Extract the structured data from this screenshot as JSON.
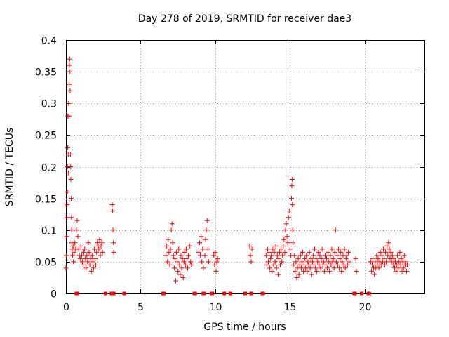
{
  "chart_data": {
    "type": "scatter",
    "title": "Day 278 of 2019, SRMTID for receiver dae3",
    "xlabel": "GPS time / hours",
    "ylabel": "SRMTID / TECUs",
    "xlim": [
      0,
      24
    ],
    "ylim": [
      0,
      0.4
    ],
    "grid": true,
    "marker": "plus",
    "color": "#ff0000",
    "xticks": [
      0,
      5,
      10,
      15,
      20
    ],
    "xtick_labels": [
      "0",
      "5",
      "10",
      "15",
      "20"
    ],
    "yticks": [
      0,
      0.05,
      0.1,
      0.15,
      0.2,
      0.25,
      0.3,
      0.35,
      0.4
    ],
    "ytick_labels": [
      "0",
      "0.05",
      "0.1",
      "0.15",
      "0.2",
      "0.25",
      "0.3",
      "0.35",
      "0.4"
    ],
    "series": [
      {
        "name": "SRMTID",
        "points": [
          [
            0.0,
            0.04
          ],
          [
            0.02,
            0.06
          ],
          [
            0.05,
            0.09
          ],
          [
            0.07,
            0.12
          ],
          [
            0.08,
            0.14
          ],
          [
            0.1,
            0.16
          ],
          [
            0.1,
            0.2
          ],
          [
            0.12,
            0.23
          ],
          [
            0.13,
            0.28
          ],
          [
            0.15,
            0.22
          ],
          [
            0.17,
            0.19
          ],
          [
            0.18,
            0.3
          ],
          [
            0.2,
            0.28
          ],
          [
            0.22,
            0.33
          ],
          [
            0.23,
            0.36
          ],
          [
            0.25,
            0.37
          ],
          [
            0.27,
            0.35
          ],
          [
            0.28,
            0.32
          ],
          [
            0.3,
            0.22
          ],
          [
            0.32,
            0.2
          ],
          [
            0.33,
            0.18
          ],
          [
            0.35,
            0.15
          ],
          [
            0.37,
            0.12
          ],
          [
            0.38,
            0.1
          ],
          [
            0.4,
            0.08
          ],
          [
            0.42,
            0.07
          ],
          [
            0.45,
            0.06
          ],
          [
            0.48,
            0.075
          ],
          [
            0.5,
            0.05
          ],
          [
            0.55,
            0.065
          ],
          [
            0.6,
            0.08
          ],
          [
            0.65,
            0.07
          ],
          [
            0.7,
            0.1
          ],
          [
            0.75,
            0.115
          ],
          [
            0.8,
            0.09
          ],
          [
            0.85,
            0.07
          ],
          [
            0.9,
            0.06
          ],
          [
            0.95,
            0.055
          ],
          [
            1.0,
            0.075
          ],
          [
            1.05,
            0.06
          ],
          [
            1.1,
            0.05
          ],
          [
            1.15,
            0.045
          ],
          [
            1.2,
            0.065
          ],
          [
            1.25,
            0.07
          ],
          [
            1.3,
            0.055
          ],
          [
            1.35,
            0.04
          ],
          [
            1.4,
            0.06
          ],
          [
            1.45,
            0.05
          ],
          [
            1.5,
            0.08
          ],
          [
            1.55,
            0.065
          ],
          [
            1.6,
            0.045
          ],
          [
            1.65,
            0.055
          ],
          [
            1.7,
            0.035
          ],
          [
            1.75,
            0.06
          ],
          [
            1.8,
            0.05
          ],
          [
            1.85,
            0.04
          ],
          [
            1.9,
            0.07
          ],
          [
            1.95,
            0.055
          ],
          [
            2.0,
            0.045
          ],
          [
            2.05,
            0.065
          ],
          [
            2.1,
            0.08
          ],
          [
            2.15,
            0.075
          ],
          [
            2.2,
            0.07
          ],
          [
            2.25,
            0.085
          ],
          [
            2.3,
            0.06
          ],
          [
            2.35,
            0.075
          ],
          [
            2.4,
            0.08
          ],
          [
            2.45,
            0.065
          ],
          [
            3.1,
            0.14
          ],
          [
            3.12,
            0.13
          ],
          [
            3.15,
            0.1
          ],
          [
            3.18,
            0.08
          ],
          [
            3.2,
            0.065
          ],
          [
            6.7,
            0.06
          ],
          [
            6.75,
            0.075
          ],
          [
            6.8,
            0.05
          ],
          [
            6.85,
            0.085
          ],
          [
            6.9,
            0.065
          ],
          [
            6.95,
            0.045
          ],
          [
            7.0,
            0.07
          ],
          [
            7.05,
            0.1
          ],
          [
            7.1,
            0.11
          ],
          [
            7.15,
            0.08
          ],
          [
            7.2,
            0.06
          ],
          [
            7.25,
            0.04
          ],
          [
            7.3,
            0.055
          ],
          [
            7.35,
            0.02
          ],
          [
            7.4,
            0.065
          ],
          [
            7.45,
            0.05
          ],
          [
            7.5,
            0.035
          ],
          [
            7.55,
            0.07
          ],
          [
            7.6,
            0.045
          ],
          [
            7.65,
            0.03
          ],
          [
            7.7,
            0.06
          ],
          [
            7.75,
            0.04
          ],
          [
            7.8,
            0.055
          ],
          [
            7.85,
            0.025
          ],
          [
            7.9,
            0.05
          ],
          [
            7.95,
            0.065
          ],
          [
            8.0,
            0.045
          ],
          [
            8.05,
            0.07
          ],
          [
            8.1,
            0.055
          ],
          [
            8.15,
            0.04
          ],
          [
            8.2,
            0.06
          ],
          [
            8.3,
            0.075
          ],
          [
            8.35,
            0.05
          ],
          [
            8.4,
            0.045
          ],
          [
            8.9,
            0.065
          ],
          [
            8.95,
            0.08
          ],
          [
            9.0,
            0.06
          ],
          [
            9.05,
            0.09
          ],
          [
            9.1,
            0.05
          ],
          [
            9.15,
            0.07
          ],
          [
            9.2,
            0.04
          ],
          [
            9.3,
            0.06
          ],
          [
            9.35,
            0.085
          ],
          [
            9.4,
            0.1
          ],
          [
            9.45,
            0.115
          ],
          [
            9.5,
            0.07
          ],
          [
            9.55,
            0.05
          ],
          [
            9.9,
            0.06
          ],
          [
            9.95,
            0.045
          ],
          [
            10.0,
            0.065
          ],
          [
            10.05,
            0.035
          ],
          [
            10.1,
            0.05
          ],
          [
            10.15,
            0.055
          ],
          [
            12.3,
            0.075
          ],
          [
            12.35,
            0.06
          ],
          [
            12.4,
            0.05
          ],
          [
            12.45,
            0.07
          ],
          [
            13.4,
            0.06
          ],
          [
            13.45,
            0.045
          ],
          [
            13.5,
            0.07
          ],
          [
            13.55,
            0.05
          ],
          [
            13.6,
            0.065
          ],
          [
            13.65,
            0.04
          ],
          [
            13.7,
            0.055
          ],
          [
            13.75,
            0.06
          ],
          [
            13.8,
            0.035
          ],
          [
            13.85,
            0.07
          ],
          [
            13.9,
            0.045
          ],
          [
            13.95,
            0.065
          ],
          [
            14.0,
            0.05
          ],
          [
            14.05,
            0.075
          ],
          [
            14.1,
            0.04
          ],
          [
            14.15,
            0.06
          ],
          [
            14.2,
            0.03
          ],
          [
            14.25,
            0.055
          ],
          [
            14.3,
            0.065
          ],
          [
            14.35,
            0.045
          ],
          [
            14.4,
            0.07
          ],
          [
            14.45,
            0.05
          ],
          [
            14.5,
            0.06
          ],
          [
            14.55,
            0.075
          ],
          [
            14.6,
            0.085
          ],
          [
            14.65,
            0.065
          ],
          [
            14.7,
            0.1
          ],
          [
            14.75,
            0.11
          ],
          [
            14.8,
            0.09
          ],
          [
            14.85,
            0.08
          ],
          [
            14.9,
            0.12
          ],
          [
            14.95,
            0.13
          ],
          [
            15.0,
            0.07
          ],
          [
            15.05,
            0.06
          ],
          [
            15.1,
            0.15
          ],
          [
            15.12,
            0.17
          ],
          [
            15.14,
            0.18
          ],
          [
            15.16,
            0.14
          ],
          [
            15.18,
            0.1
          ],
          [
            15.2,
            0.08
          ],
          [
            15.25,
            0.045
          ],
          [
            15.3,
            0.06
          ],
          [
            15.35,
            0.035
          ],
          [
            15.4,
            0.05
          ],
          [
            15.45,
            0.025
          ],
          [
            15.5,
            0.04
          ],
          [
            15.55,
            0.055
          ],
          [
            15.6,
            0.03
          ],
          [
            15.65,
            0.045
          ],
          [
            15.7,
            0.06
          ],
          [
            15.75,
            0.04
          ],
          [
            15.8,
            0.05
          ],
          [
            15.85,
            0.065
          ],
          [
            15.9,
            0.035
          ],
          [
            15.95,
            0.045
          ],
          [
            16.0,
            0.055
          ],
          [
            16.05,
            0.04
          ],
          [
            16.1,
            0.06
          ],
          [
            16.15,
            0.035
          ],
          [
            16.2,
            0.05
          ],
          [
            16.25,
            0.045
          ],
          [
            16.3,
            0.065
          ],
          [
            16.35,
            0.04
          ],
          [
            16.4,
            0.055
          ],
          [
            16.45,
            0.03
          ],
          [
            16.5,
            0.05
          ],
          [
            16.55,
            0.06
          ],
          [
            16.6,
            0.045
          ],
          [
            16.65,
            0.07
          ],
          [
            16.7,
            0.04
          ],
          [
            16.75,
            0.055
          ],
          [
            16.8,
            0.035
          ],
          [
            16.85,
            0.05
          ],
          [
            16.9,
            0.065
          ],
          [
            16.95,
            0.045
          ],
          [
            17.0,
            0.06
          ],
          [
            17.05,
            0.04
          ],
          [
            17.1,
            0.055
          ],
          [
            17.15,
            0.07
          ],
          [
            17.2,
            0.045
          ],
          [
            17.25,
            0.05
          ],
          [
            17.3,
            0.035
          ],
          [
            17.35,
            0.06
          ],
          [
            17.4,
            0.045
          ],
          [
            17.45,
            0.055
          ],
          [
            17.5,
            0.04
          ],
          [
            17.55,
            0.065
          ],
          [
            17.6,
            0.05
          ],
          [
            17.65,
            0.035
          ],
          [
            17.7,
            0.06
          ],
          [
            17.75,
            0.045
          ],
          [
            17.8,
            0.07
          ],
          [
            17.85,
            0.05
          ],
          [
            17.9,
            0.055
          ],
          [
            17.95,
            0.04
          ],
          [
            18.0,
            0.065
          ],
          [
            18.05,
            0.1
          ],
          [
            18.1,
            0.05
          ],
          [
            18.15,
            0.06
          ],
          [
            18.2,
            0.045
          ],
          [
            18.25,
            0.07
          ],
          [
            18.3,
            0.04
          ],
          [
            18.35,
            0.055
          ],
          [
            18.4,
            0.065
          ],
          [
            18.45,
            0.035
          ],
          [
            18.5,
            0.05
          ],
          [
            18.55,
            0.06
          ],
          [
            18.6,
            0.045
          ],
          [
            18.65,
            0.07
          ],
          [
            18.7,
            0.04
          ],
          [
            18.75,
            0.055
          ],
          [
            18.8,
            0.06
          ],
          [
            18.85,
            0.045
          ],
          [
            18.9,
            0.065
          ],
          [
            18.95,
            0.05
          ],
          [
            19.4,
            0.055
          ],
          [
            19.45,
            0.035
          ],
          [
            20.4,
            0.05
          ],
          [
            20.45,
            0.035
          ],
          [
            20.5,
            0.045
          ],
          [
            20.55,
            0.055
          ],
          [
            20.6,
            0.04
          ],
          [
            20.65,
            0.03
          ],
          [
            20.7,
            0.05
          ],
          [
            20.75,
            0.04
          ],
          [
            20.8,
            0.06
          ],
          [
            20.85,
            0.045
          ],
          [
            20.9,
            0.055
          ],
          [
            20.95,
            0.04
          ],
          [
            21.0,
            0.05
          ],
          [
            21.05,
            0.065
          ],
          [
            21.1,
            0.045
          ],
          [
            21.15,
            0.06
          ],
          [
            21.2,
            0.05
          ],
          [
            21.25,
            0.07
          ],
          [
            21.3,
            0.055
          ],
          [
            21.35,
            0.045
          ],
          [
            21.4,
            0.065
          ],
          [
            21.45,
            0.05
          ],
          [
            21.5,
            0.075
          ],
          [
            21.55,
            0.06
          ],
          [
            21.6,
            0.08
          ],
          [
            21.65,
            0.07
          ],
          [
            21.7,
            0.055
          ],
          [
            21.75,
            0.065
          ],
          [
            21.8,
            0.05
          ],
          [
            21.85,
            0.06
          ],
          [
            21.9,
            0.045
          ],
          [
            21.95,
            0.055
          ],
          [
            22.0,
            0.04
          ],
          [
            22.05,
            0.05
          ],
          [
            22.1,
            0.035
          ],
          [
            22.15,
            0.045
          ],
          [
            22.2,
            0.06
          ],
          [
            22.25,
            0.04
          ],
          [
            22.3,
            0.05
          ],
          [
            22.35,
            0.065
          ],
          [
            22.4,
            0.045
          ],
          [
            22.45,
            0.055
          ],
          [
            22.5,
            0.035
          ],
          [
            22.55,
            0.05
          ],
          [
            22.6,
            0.04
          ],
          [
            22.65,
            0.06
          ],
          [
            22.7,
            0.045
          ],
          [
            22.75,
            0.05
          ],
          [
            22.8,
            0.035
          ],
          [
            22.85,
            0.045
          ]
        ]
      }
    ],
    "zero_points_x": [
      0.7,
      0.75,
      2.65,
      3.05,
      3.2,
      3.9,
      6.5,
      6.55,
      8.6,
      8.65,
      9.2,
      9.25,
      9.75,
      9.8,
      10.6,
      11.0,
      12.0,
      12.4,
      13.15,
      13.2,
      19.3,
      19.35,
      19.8,
      20.25,
      20.3
    ]
  }
}
